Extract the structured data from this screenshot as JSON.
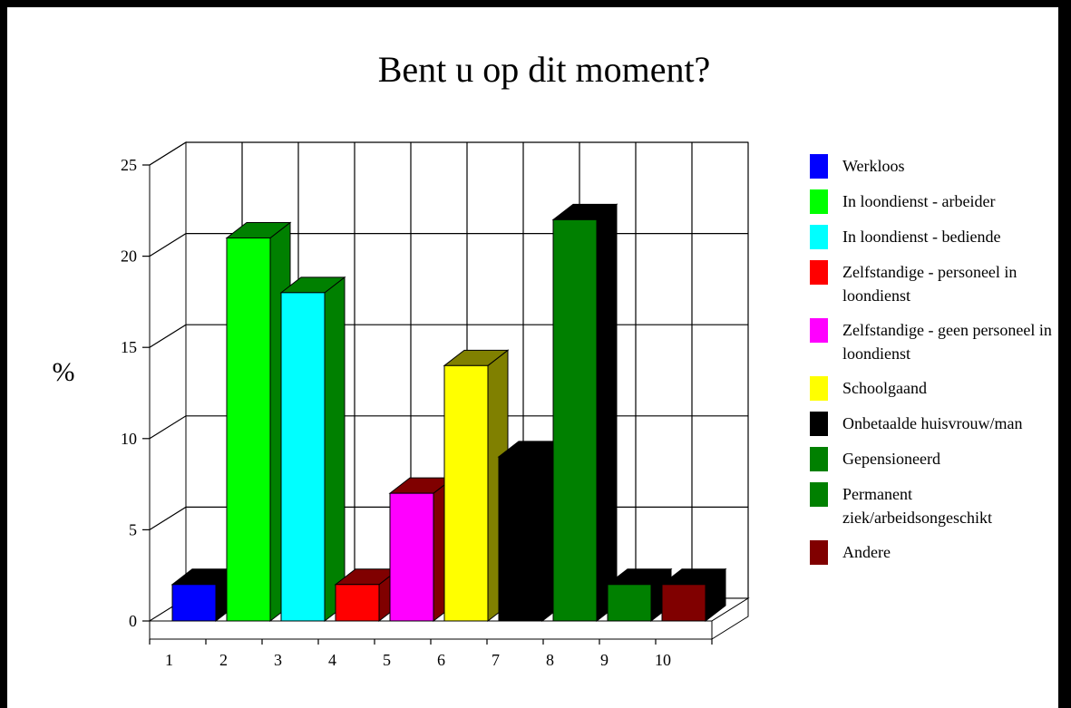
{
  "chart_data": {
    "type": "bar3d",
    "title": "Bent u op dit moment?",
    "y_label": "%",
    "categories": [
      "1",
      "2",
      "3",
      "4",
      "5",
      "6",
      "7",
      "8",
      "9",
      "10"
    ],
    "labels": [
      "Werkloos",
      "In loondienst - arbeider",
      "In loondienst - bediende",
      "Zelfstandige - personeel in loondienst",
      "Zelfstandige - geen personeel in loondienst",
      "Schoolgaand",
      "Onbetaalde huisvrouw/man",
      "Gepensioneerd",
      "Permanent ziek/arbeidsongeschikt",
      "Andere"
    ],
    "values": [
      2,
      21,
      18,
      2,
      7,
      14,
      9,
      22,
      2,
      2
    ],
    "colors": [
      "#0000ff",
      "#00ff00",
      "#00ffff",
      "#ff0000",
      "#ff00ff",
      "#ffff00",
      "#000000",
      "#008000",
      "#008000",
      "#800000"
    ],
    "side_colors": [
      "#000000",
      "#008000",
      "#008000",
      "#800000",
      "#800000",
      "#808000",
      "#000000",
      "#000000",
      "#000000",
      "#000000"
    ],
    "ylim": [
      0,
      25
    ],
    "yticks": [
      0,
      5,
      10,
      15,
      20,
      25
    ],
    "grid": true
  }
}
